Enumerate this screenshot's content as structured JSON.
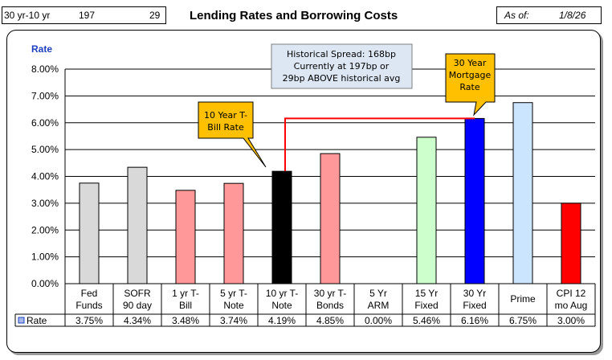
{
  "header": {
    "spread_label": "30 yr-10 yr",
    "spread_current": "197",
    "spread_diff": "29",
    "title": "Lending Rates and Borrowing Costs",
    "asof_label": "As of:",
    "asof_date": "1/8/26"
  },
  "chart_data": {
    "type": "bar",
    "ylabel": "Rate",
    "ylim": [
      0,
      8
    ],
    "yticks": [
      "0.00%",
      "1.00%",
      "2.00%",
      "3.00%",
      "4.00%",
      "5.00%",
      "6.00%",
      "7.00%",
      "8.00%"
    ],
    "categories": [
      [
        "Fed",
        "Funds"
      ],
      [
        "SOFR",
        "90 day"
      ],
      [
        "1 yr  T-",
        "Bill"
      ],
      [
        "5 yr T-",
        "Note"
      ],
      [
        "10 yr T-",
        "Note"
      ],
      [
        "30 yr T-",
        "Bonds"
      ],
      [
        "5 Yr",
        "ARM"
      ],
      [
        "15 Yr",
        "Fixed"
      ],
      [
        "30 Yr",
        "Fixed"
      ],
      [
        "Prime"
      ],
      [
        "CPI 12",
        "mo Aug"
      ]
    ],
    "series": [
      {
        "name": "Rate",
        "values": [
          3.75,
          4.34,
          3.48,
          3.74,
          4.19,
          4.85,
          0.0,
          5.46,
          6.16,
          6.75,
          3.0
        ],
        "labels": [
          "3.75%",
          "4.34%",
          "3.48%",
          "3.74%",
          "4.19%",
          "4.85%",
          "0.00%",
          "5.46%",
          "6.16%",
          "6.75%",
          "3.00%"
        ]
      }
    ],
    "bar_colors": [
      "#d9d9d9",
      "#d9d9d9",
      "#ff9999",
      "#ff9999",
      "#000000",
      "#ff9999",
      "#ffffff",
      "#ccffcc",
      "#0000ff",
      "#cce5ff",
      "#ff0000"
    ],
    "legend_color": "#a6b8e8",
    "spread_line_color": "#ff0000",
    "grid": true,
    "annotations": {
      "spread": [
        "Historical Spread: 168bp",
        "Currently at 197bp  or",
        "29bp ABOVE historical avg"
      ],
      "ten_year": [
        "10 Year T-",
        "Bill Rate"
      ],
      "thirty_year": [
        "30 Year",
        "Mortgage",
        "Rate"
      ]
    },
    "callout_color": "#ffc000"
  }
}
